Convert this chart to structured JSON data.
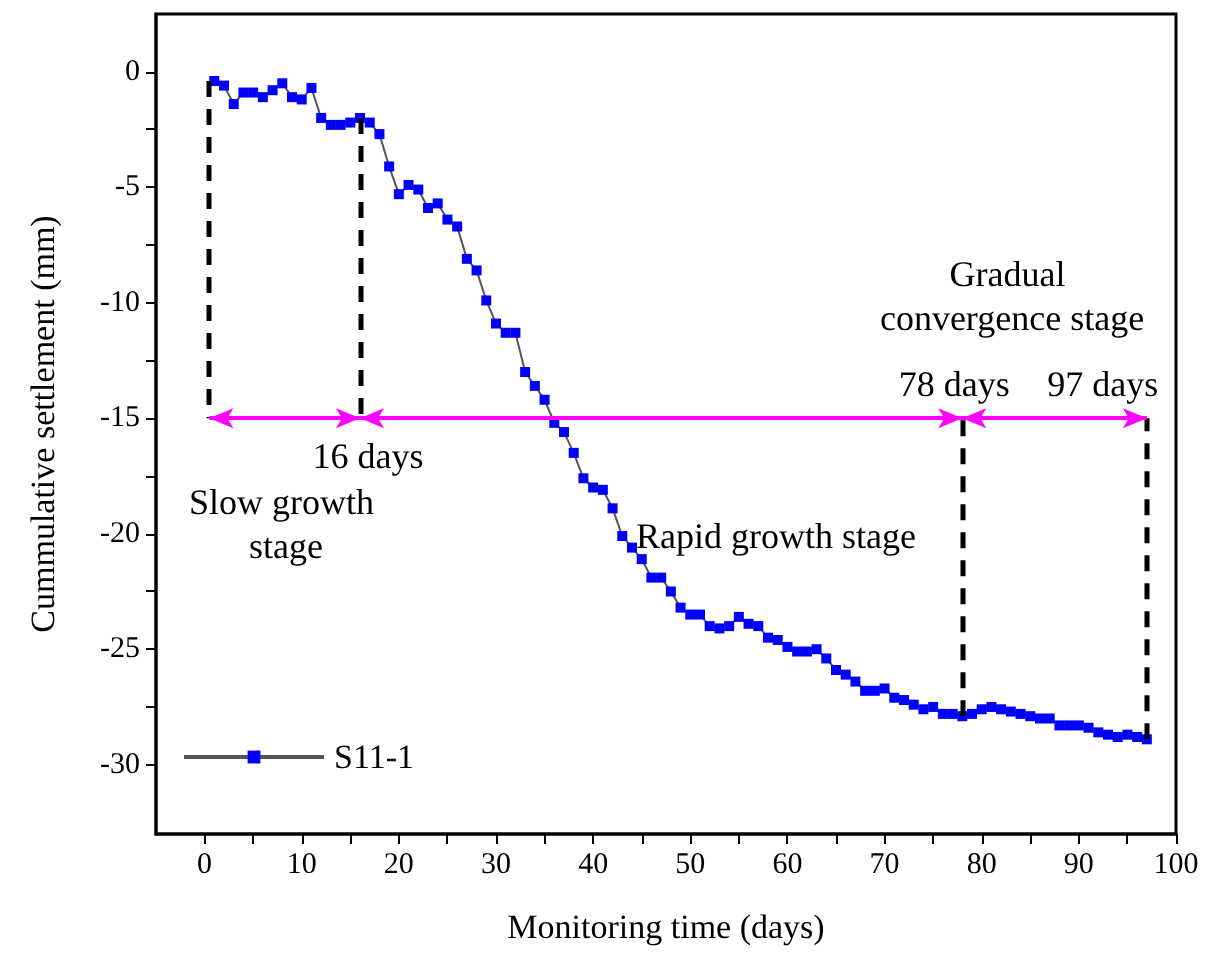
{
  "chart_data": {
    "type": "line",
    "xlabel": "Monitoring time (days)",
    "ylabel": "Cummulative settlement (mm)",
    "x": [
      1,
      2,
      3,
      4,
      5,
      6,
      7,
      8,
      9,
      10,
      11,
      12,
      13,
      14,
      15,
      16,
      17,
      18,
      19,
      20,
      21,
      22,
      23,
      24,
      25,
      26,
      27,
      28,
      29,
      30,
      31,
      32,
      33,
      34,
      35,
      36,
      37,
      38,
      39,
      40,
      41,
      42,
      43,
      44,
      45,
      46,
      47,
      48,
      49,
      50,
      51,
      52,
      53,
      54,
      55,
      56,
      57,
      58,
      59,
      60,
      61,
      62,
      63,
      64,
      65,
      66,
      67,
      68,
      69,
      70,
      71,
      72,
      73,
      74,
      75,
      76,
      77,
      78,
      79,
      80,
      81,
      82,
      83,
      84,
      85,
      86,
      87,
      88,
      89,
      90,
      91,
      92,
      93,
      94,
      95,
      96,
      97
    ],
    "series": [
      {
        "name": "S11-1",
        "color": "#0000ff",
        "values": [
          -0.4,
          -0.6,
          -1.4,
          -0.9,
          -0.9,
          -1.1,
          -0.8,
          -0.5,
          -1.1,
          -1.2,
          -0.7,
          -2.0,
          -2.3,
          -2.3,
          -2.2,
          -2.0,
          -2.2,
          -2.7,
          -4.1,
          -5.3,
          -4.9,
          -5.1,
          -5.9,
          -5.7,
          -6.4,
          -6.7,
          -8.1,
          -8.6,
          -9.9,
          -10.9,
          -11.3,
          -11.3,
          -13.0,
          -13.6,
          -14.2,
          -15.2,
          -15.6,
          -16.5,
          -17.6,
          -18.0,
          -18.1,
          -18.9,
          -20.1,
          -20.6,
          -21.1,
          -21.9,
          -21.9,
          -22.5,
          -23.2,
          -23.5,
          -23.5,
          -24.0,
          -24.1,
          -24.0,
          -23.6,
          -23.9,
          -24.0,
          -24.5,
          -24.6,
          -24.9,
          -25.1,
          -25.1,
          -25.0,
          -25.4,
          -25.9,
          -26.1,
          -26.4,
          -26.8,
          -26.8,
          -26.7,
          -27.1,
          -27.2,
          -27.4,
          -27.6,
          -27.5,
          -27.8,
          -27.8,
          -27.9,
          -27.8,
          -27.6,
          -27.5,
          -27.6,
          -27.7,
          -27.8,
          -27.9,
          -28.0,
          -28.0,
          -28.3,
          -28.3,
          -28.3,
          -28.4,
          -28.6,
          -28.7,
          -28.8,
          -28.7,
          -28.8,
          -28.9
        ]
      }
    ],
    "xlim": [
      -5,
      100
    ],
    "xticks": [
      0,
      10,
      20,
      30,
      40,
      50,
      60,
      70,
      80,
      90,
      100
    ],
    "ylim": [
      -33,
      2.5
    ],
    "yticks": [
      -30,
      -25,
      -20,
      -15,
      -10,
      -5,
      0
    ],
    "ref_lines": [
      {
        "axis": "x",
        "value": 0.5,
        "label": null,
        "color": "#000000",
        "line_style": "dashed"
      },
      {
        "axis": "x",
        "value": 16,
        "label": "16 days",
        "color": "#000000",
        "line_style": "dashed"
      },
      {
        "axis": "x",
        "value": 78,
        "label": "78 days",
        "color": "#000000",
        "line_style": "dashed"
      },
      {
        "axis": "x",
        "value": 97,
        "label": "97 days",
        "color": "#000000",
        "line_style": "dashed"
      },
      {
        "axis": "y",
        "value": -15,
        "label": null,
        "color": "#ff00ff",
        "line_style": "solid"
      }
    ],
    "annotations": [
      "Slow growth stage",
      "Rapid growth stage",
      "Gradual convergence stage"
    ],
    "legend": "bottom left",
    "grid": false,
    "marker": "square",
    "line_style": "solid"
  }
}
